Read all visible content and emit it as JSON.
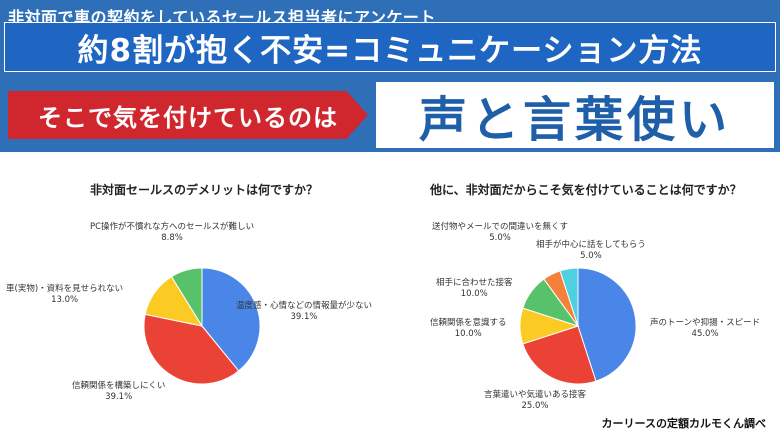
{
  "header": {
    "survey_title": "非対面で車の契約をしているセールス担当者にアンケート",
    "main_title": "約8割が抱く不安=コミュニケーション方法",
    "sub_label": "そこで気を付けているのは",
    "highlight": "声と言葉使い"
  },
  "chart_data": [
    {
      "type": "pie",
      "title": "非対面セールスのデメリットは何ですか？",
      "slices": [
        {
          "label": "温度感・心情などの情報量が少ない",
          "value": 39.1,
          "pct": "39.1%",
          "color": "#4a86e8"
        },
        {
          "label": "信頼関係を構築しにくい",
          "value": 39.1,
          "pct": "39.1%",
          "color": "#ea4335"
        },
        {
          "label": "車(実物)・資料を見せられない",
          "value": 13.0,
          "pct": "13.0%",
          "color": "#fbcb24"
        },
        {
          "label": "PC操作が不慣れな方へのセールスが難しい",
          "value": 8.8,
          "pct": "8.8%",
          "color": "#57c26a"
        }
      ]
    },
    {
      "type": "pie",
      "title": "他に、非対面だからこそ気を付けていることは何ですか？",
      "slices": [
        {
          "label": "声のトーンや抑揚・スピード",
          "value": 45.0,
          "pct": "45.0%",
          "color": "#4a86e8"
        },
        {
          "label": "言葉遣いや気遣いある接客",
          "value": 25.0,
          "pct": "25.0%",
          "color": "#ea4335"
        },
        {
          "label": "信頼関係を意識する",
          "value": 10.0,
          "pct": "10.0%",
          "color": "#fbcb24"
        },
        {
          "label": "相手に合わせた接客",
          "value": 10.0,
          "pct": "10.0%",
          "color": "#57c26a"
        },
        {
          "label": "送付物やメールでの間違いを無くす",
          "value": 5.0,
          "pct": "5.0%",
          "color": "#f4813a"
        },
        {
          "label": "相手が中心に話をしてもらう",
          "value": 5.0,
          "pct": "5.0%",
          "color": "#4fd0e0"
        }
      ]
    }
  ],
  "credit": "カーリースの定額カルモくん調べ"
}
